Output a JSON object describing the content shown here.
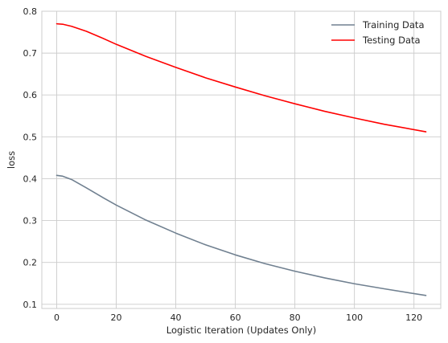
{
  "chart_data": {
    "type": "line",
    "title": "",
    "xlabel": "Logistic Iteration (Updates Only)",
    "ylabel": "loss",
    "xlim": [
      -5,
      129
    ],
    "ylim": [
      0.09,
      0.8
    ],
    "xticks": [
      0,
      20,
      40,
      60,
      80,
      100,
      120
    ],
    "xtick_labels": [
      "0",
      "20",
      "40",
      "60",
      "80",
      "100",
      "120"
    ],
    "yticks": [
      0.1,
      0.2,
      0.3,
      0.4,
      0.5,
      0.6,
      0.7,
      0.8
    ],
    "ytick_labels": [
      "0.1",
      "0.2",
      "0.3",
      "0.4",
      "0.5",
      "0.6",
      "0.7",
      "0.8"
    ],
    "grid": true,
    "legend_position": "top-right",
    "series": [
      {
        "name": "Training Data",
        "color": "#708090",
        "x": [
          0,
          2,
          5,
          10,
          15,
          20,
          30,
          40,
          50,
          60,
          70,
          80,
          90,
          100,
          110,
          124
        ],
        "y": [
          0.408,
          0.406,
          0.398,
          0.378,
          0.357,
          0.337,
          0.301,
          0.27,
          0.242,
          0.218,
          0.197,
          0.179,
          0.163,
          0.149,
          0.137,
          0.121
        ]
      },
      {
        "name": "Testing Data",
        "color": "#ff0000",
        "x": [
          0,
          2,
          5,
          10,
          15,
          20,
          30,
          40,
          50,
          60,
          70,
          80,
          90,
          100,
          110,
          124
        ],
        "y": [
          0.77,
          0.769,
          0.764,
          0.752,
          0.737,
          0.721,
          0.692,
          0.666,
          0.641,
          0.619,
          0.598,
          0.579,
          0.561,
          0.545,
          0.53,
          0.512
        ]
      }
    ]
  }
}
